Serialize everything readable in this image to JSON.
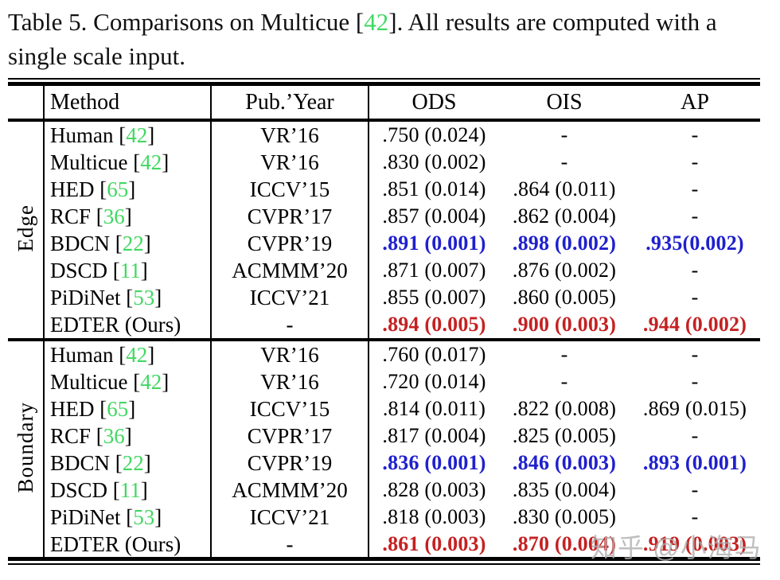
{
  "caption": {
    "parts": [
      {
        "text": "Table 5. Comparisons on Multicue [",
        "color": "ink"
      },
      {
        "text": "42",
        "color": "green"
      },
      {
        "text": "]. All results are computed with a single scale input.",
        "color": "ink"
      }
    ]
  },
  "table": {
    "headers": {
      "method": "Method",
      "pub_year": "Pub.’Year",
      "ods": "ODS",
      "ois": "OIS",
      "ap": "AP"
    },
    "sections": [
      {
        "label": "Edge",
        "rows": [
          {
            "method_pre": "Human [",
            "cite": "42",
            "method_post": "]",
            "pub": "VR’16",
            "ods": ".750 (0.024)",
            "ois": "-",
            "ap": "-",
            "color": "ink"
          },
          {
            "method_pre": "Multicue [",
            "cite": "42",
            "method_post": "]",
            "pub": "VR’16",
            "ods": ".830 (0.002)",
            "ois": "-",
            "ap": "-",
            "color": "ink"
          },
          {
            "method_pre": "HED [",
            "cite": "65",
            "method_post": "]",
            "pub": "ICCV’15",
            "ods": ".851 (0.014)",
            "ois": ".864 (0.011)",
            "ap": "-",
            "color": "ink"
          },
          {
            "method_pre": "RCF [",
            "cite": "36",
            "method_post": "]",
            "pub": "CVPR’17",
            "ods": ".857 (0.004)",
            "ois": ".862 (0.004)",
            "ap": "-",
            "color": "ink"
          },
          {
            "method_pre": "BDCN [",
            "cite": "22",
            "method_post": "]",
            "pub": "CVPR’19",
            "ods": ".891 (0.001)",
            "ois": ".898 (0.002)",
            "ap": ".935(0.002)",
            "color": "blue"
          },
          {
            "method_pre": "DSCD [",
            "cite": "11",
            "method_post": "]",
            "pub": "ACMMM’20",
            "ods": ".871 (0.007)",
            "ois": ".876 (0.002)",
            "ap": "-",
            "color": "ink"
          },
          {
            "method_pre": "PiDiNet [",
            "cite": "53",
            "method_post": "]",
            "pub": "ICCV’21",
            "ods": ".855 (0.007)",
            "ois": ".860 (0.005)",
            "ap": "-",
            "color": "ink"
          },
          {
            "method_pre": "EDTER (Ours)",
            "cite": "",
            "method_post": "",
            "pub": "-",
            "ods": ".894 (0.005)",
            "ois": ".900 (0.003)",
            "ap": ".944 (0.002)",
            "color": "red"
          }
        ]
      },
      {
        "label": "Boundary",
        "rows": [
          {
            "method_pre": "Human [",
            "cite": "42",
            "method_post": "]",
            "pub": "VR’16",
            "ods": ".760 (0.017)",
            "ois": "-",
            "ap": "-",
            "color": "ink"
          },
          {
            "method_pre": "Multicue [",
            "cite": "42",
            "method_post": "]",
            "pub": "VR’16",
            "ods": ".720 (0.014)",
            "ois": "-",
            "ap": "-",
            "color": "ink"
          },
          {
            "method_pre": "HED [",
            "cite": "65",
            "method_post": "]",
            "pub": "ICCV’15",
            "ods": ".814 (0.011)",
            "ois": ".822 (0.008)",
            "ap": ".869 (0.015)",
            "color": "ink"
          },
          {
            "method_pre": "RCF [",
            "cite": "36",
            "method_post": "]",
            "pub": "CVPR’17",
            "ods": ".817 (0.004)",
            "ois": ".825 (0.005)",
            "ap": "-",
            "color": "ink"
          },
          {
            "method_pre": "BDCN [",
            "cite": "22",
            "method_post": "]",
            "pub": "CVPR’19",
            "ods": ".836 (0.001)",
            "ois": ".846 (0.003)",
            "ap": ".893 (0.001)",
            "color": "blue"
          },
          {
            "method_pre": "DSCD [",
            "cite": "11",
            "method_post": "]",
            "pub": "ACMMM’20",
            "ods": ".828 (0.003)",
            "ois": ".835 (0.004)",
            "ap": "-",
            "color": "ink"
          },
          {
            "method_pre": "PiDiNet [",
            "cite": "53",
            "method_post": "]",
            "pub": "ICCV’21",
            "ods": ".818 (0.003)",
            "ois": ".830 (0.005)",
            "ap": "-",
            "color": "ink"
          },
          {
            "method_pre": "EDTER (Ours)",
            "cite": "",
            "method_post": "",
            "pub": "-",
            "ods": ".861 (0.003)",
            "ois": ".870 (0.004)",
            "ap": ".919 (0.003)",
            "color": "red"
          }
        ]
      }
    ]
  },
  "watermark": {
    "text": "知乎 @小海马"
  },
  "colors": {
    "green": "#41d861",
    "blue": "#1f20cd",
    "red": "#c52122",
    "ink": "#000000",
    "watermark": "#aeaeae"
  }
}
